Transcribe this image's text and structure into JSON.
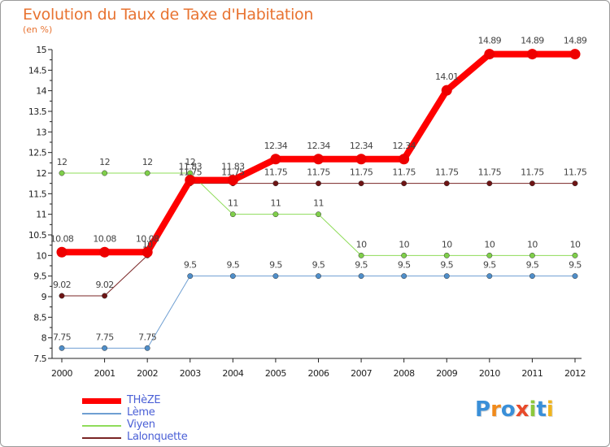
{
  "title": "Evolution du Taux de Taxe d'Habitation",
  "unit_label": "(en %)",
  "brand": {
    "letters": [
      "P",
      "r",
      "o",
      "x",
      "i",
      "t",
      "i"
    ],
    "colors": [
      "#3a8fd8",
      "#f08a1c",
      "#3a8fd8",
      "#e84a2a",
      "#8cc83c",
      "#3a8fd8",
      "#f0b41c"
    ]
  },
  "chart_data": {
    "type": "line",
    "title": "Evolution du Taux de Taxe d'Habitation",
    "ylabel": "(en %)",
    "xlabel": "",
    "ylim": [
      7.5,
      15
    ],
    "yticks": [
      "7.5",
      "8",
      "8.5",
      "9",
      "9.5",
      "10",
      "10.5",
      "11",
      "11.5",
      "12",
      "12.5",
      "13",
      "13.5",
      "14",
      "14.5",
      "15"
    ],
    "categories": [
      "2000",
      "2001",
      "2002",
      "2003",
      "2004",
      "2005",
      "2006",
      "2007",
      "2008",
      "2009",
      "2010",
      "2011",
      "2012"
    ],
    "series": [
      {
        "name": "Lalonquette",
        "color": "#7a2525",
        "dot": "#6e1414",
        "width": 1,
        "values": [
          9.02,
          9.02,
          10,
          11.75,
          11.75,
          11.75,
          11.75,
          11.75,
          11.75,
          11.75,
          11.75,
          11.75,
          11.75
        ],
        "labels": [
          "9.02",
          "9.02",
          "10",
          "11.75",
          "11.75",
          "11.75",
          "11.75",
          "11.75",
          "11.75",
          "11.75",
          "11.75",
          "11.75",
          "11.75"
        ]
      },
      {
        "name": "Viyen",
        "color": "#8fdc5a",
        "dot": "#7fcf4a",
        "width": 1,
        "values": [
          12,
          12,
          12,
          12,
          11,
          11,
          11,
          10,
          10,
          10,
          10,
          10,
          10
        ],
        "labels": [
          "12",
          "12",
          "12",
          "12",
          "11",
          "11",
          "11",
          "10",
          "10",
          "10",
          "10",
          "10",
          "10"
        ]
      },
      {
        "name": "Lème",
        "color": "#6f9fd2",
        "dot": "#4f8ec9",
        "width": 1,
        "values": [
          7.75,
          7.75,
          7.75,
          9.5,
          9.5,
          9.5,
          9.5,
          9.5,
          9.5,
          9.5,
          9.5,
          9.5,
          9.5
        ],
        "labels": [
          "7.75",
          "7.75",
          "7.75",
          "9.5",
          "9.5",
          "9.5",
          "9.5",
          "9.5",
          "9.5",
          "9.5",
          "9.5",
          "9.5",
          "9.5"
        ]
      },
      {
        "name": "THèZE",
        "color": "#ff0000",
        "dot": "#ee0000",
        "width": 8,
        "values": [
          10.08,
          10.08,
          10.08,
          11.83,
          11.83,
          12.34,
          12.34,
          12.34,
          12.34,
          14.01,
          14.89,
          14.89,
          14.89
        ],
        "labels": [
          "10.08",
          "10.08",
          "10.08",
          "11.83",
          "11.83",
          "12.34",
          "12.34",
          "12.34",
          "12.34",
          "14.01",
          "14.89",
          "14.89",
          "14.89"
        ]
      }
    ],
    "legend_order": [
      "THèZE",
      "Lème",
      "Viyen",
      "Lalonquette"
    ],
    "legend_position": "bottom-left",
    "grid": false
  }
}
